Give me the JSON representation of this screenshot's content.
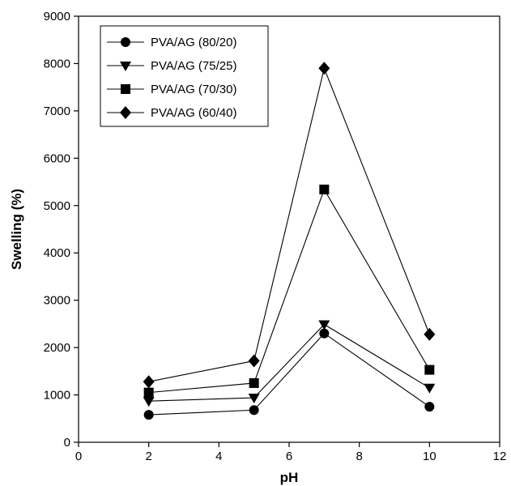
{
  "chart_data": {
    "type": "line",
    "title": "",
    "xlabel": "pH",
    "ylabel": "Swelling (%)",
    "xlim": [
      0,
      12
    ],
    "ylim": [
      0,
      9000
    ],
    "xticks": [
      0,
      2,
      4,
      6,
      8,
      10,
      12
    ],
    "yticks": [
      0,
      1000,
      2000,
      3000,
      4000,
      5000,
      6000,
      7000,
      8000,
      9000
    ],
    "x": [
      2,
      5,
      7,
      10
    ],
    "grid": false,
    "legend_position": "top-left",
    "series": [
      {
        "name": "PVA/AG (80/20)",
        "marker": "circle",
        "values": [
          580,
          680,
          2300,
          750
        ]
      },
      {
        "name": "PVA/AG (75/25)",
        "marker": "triangle-down",
        "values": [
          870,
          940,
          2490,
          1150
        ]
      },
      {
        "name": "PVA/AG (70/30)",
        "marker": "square",
        "values": [
          1050,
          1250,
          5340,
          1530
        ]
      },
      {
        "name": "PVA/AG (60/40)",
        "marker": "diamond",
        "values": [
          1280,
          1720,
          7900,
          2280
        ]
      }
    ],
    "colors": {
      "line": "#000000",
      "marker": "#000000"
    }
  }
}
